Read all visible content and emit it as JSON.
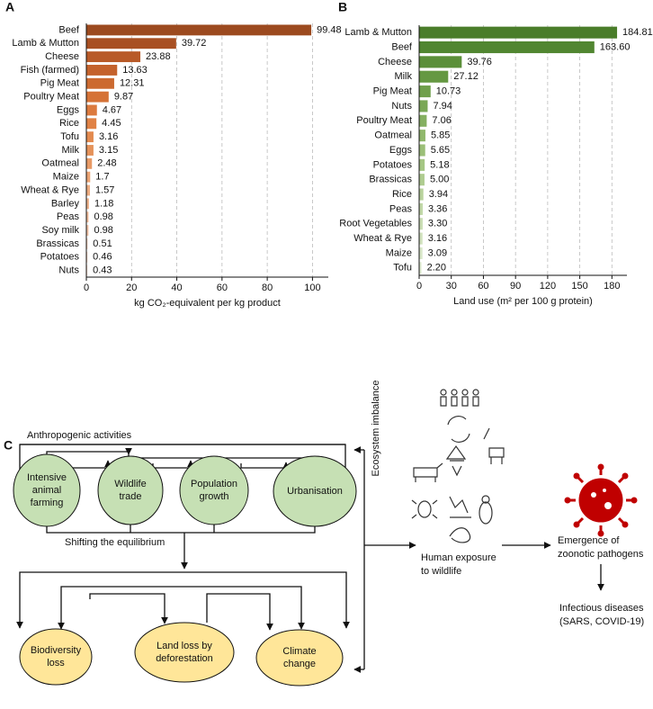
{
  "chart_data": [
    {
      "type": "hbar",
      "panel": "A",
      "categories": [
        "Beef",
        "Lamb & Mutton",
        "Cheese",
        "Fish (farmed)",
        "Pig Meat",
        "Poultry Meat",
        "Eggs",
        "Rice",
        "Tofu",
        "Milk",
        "Oatmeal",
        "Maize",
        "Wheat & Rye",
        "Barley",
        "Peas",
        "Soy milk",
        "Brassicas",
        "Potatoes",
        "Nuts"
      ],
      "values": [
        99.48,
        39.72,
        23.88,
        13.63,
        12.31,
        9.87,
        4.67,
        4.45,
        3.16,
        3.15,
        2.48,
        1.7,
        1.57,
        1.18,
        0.98,
        0.98,
        0.51,
        0.46,
        0.43
      ],
      "colors": [
        "#9c4a1f",
        "#a84f22",
        "#b85a28",
        "#c4622c",
        "#cc6a30",
        "#d57236",
        "#dc7a3e",
        "#e08245",
        "#e38a4f",
        "#e5925a",
        "#e89a66",
        "#eaa272",
        "#ecab7f",
        "#eeb38c",
        "#f0bb99",
        "#f2c3a6",
        "#f3cab2",
        "#f5d1bd",
        "#f6d8c8"
      ],
      "xlabel": "kg CO₂-equivalent per kg product",
      "xlim": [
        0,
        107
      ],
      "xticks": [
        0,
        20,
        40,
        60,
        80,
        100
      ],
      "grid": true
    },
    {
      "type": "hbar",
      "panel": "B",
      "categories": [
        "Lamb & Mutton",
        "Beef",
        "Cheese",
        "Milk",
        "Pig Meat",
        "Nuts",
        "Poultry Meat",
        "Oatmeal",
        "Eggs",
        "Potatoes",
        "Brassicas",
        "Rice",
        "Peas",
        "Root Vegetables",
        "Wheat & Rye",
        "Maize",
        "Tofu"
      ],
      "values": [
        184.81,
        163.6,
        39.76,
        27.12,
        10.73,
        7.94,
        7.06,
        5.85,
        5.65,
        5.18,
        5.0,
        3.94,
        3.36,
        3.3,
        3.16,
        3.09,
        2.2
      ],
      "value_labels": [
        "184.81",
        "163.60",
        "39.76",
        "27.12",
        "10.73",
        "7.94",
        "7.06",
        "5.85",
        "5.65",
        "5.18",
        "5.00",
        "3.94",
        "3.36",
        "3.30",
        "3.16",
        "3.09",
        "2.20"
      ],
      "colors": [
        "#4a7d2a",
        "#518631",
        "#5b8f39",
        "#659842",
        "#70a04c",
        "#7aa856",
        "#85b061",
        "#90b86c",
        "#9bbf78",
        "#a5c684",
        "#afcc90",
        "#b8d29c",
        "#c1d8a8",
        "#c9ddb3",
        "#d1e2be",
        "#d8e7c8",
        "#dfecd2"
      ],
      "xlabel": "Land use (m² per 100 g protein)",
      "xlim": [
        0,
        194
      ],
      "xticks": [
        0,
        30,
        60,
        90,
        120,
        150,
        180
      ],
      "grid": true
    }
  ],
  "diagram": {
    "panel": "C",
    "top_label": "Anthropogenic activities",
    "drivers": [
      {
        "lines": [
          "Intensive",
          "animal",
          "farming"
        ]
      },
      {
        "lines": [
          "Wildlife",
          "trade"
        ]
      },
      {
        "lines": [
          "Population",
          "growth"
        ]
      },
      {
        "lines": [
          "Urbanisation"
        ]
      }
    ],
    "shift_label": "Shifting the equilibrium",
    "effects": [
      {
        "lines": [
          "Biodiversity",
          "loss"
        ]
      },
      {
        "lines": [
          "Land loss by",
          "deforestation"
        ]
      },
      {
        "lines": [
          "Climate",
          "change"
        ]
      }
    ],
    "side_label": "Ecosystem imbalance",
    "exposure": {
      "lines": [
        "Human exposure",
        "to wildlife"
      ]
    },
    "emergence": {
      "lines": [
        "Emergence of",
        "zoonotic pathogens"
      ]
    },
    "diseases": {
      "lines": [
        "Infectious diseases",
        "(SARS, COVID-19)"
      ]
    }
  }
}
